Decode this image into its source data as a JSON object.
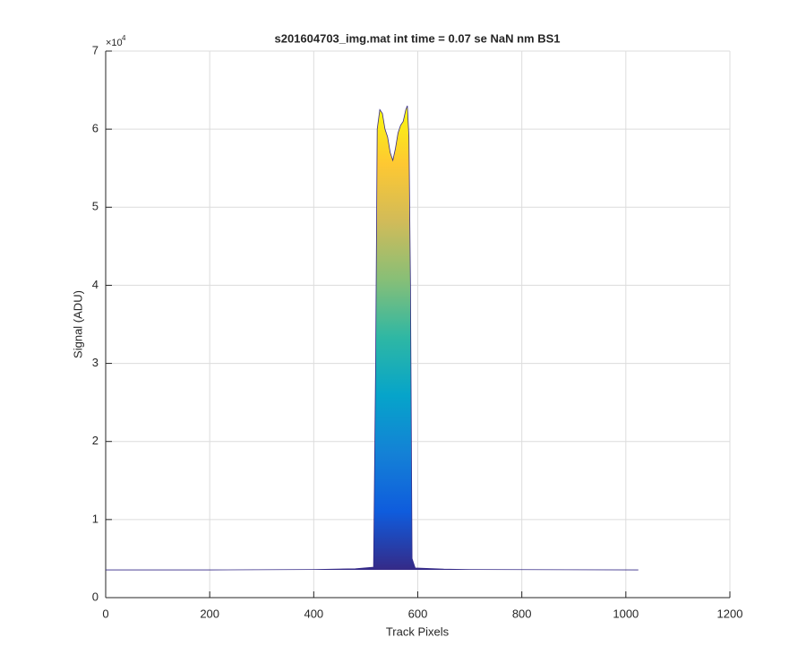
{
  "chart_data": {
    "type": "area",
    "title": "s201604703_img.mat int time = 0.07 se  NaN nm BS1",
    "xlabel": "Track Pixels",
    "ylabel": "Signal (ADU)",
    "y_multiplier": {
      "base": "×10",
      "exponent": "4"
    },
    "x": [
      0,
      200,
      400,
      480,
      515,
      519,
      522,
      527,
      532,
      537,
      542,
      547,
      552,
      557,
      562,
      567,
      572,
      577,
      580,
      583,
      586,
      589,
      595,
      650,
      700,
      1024
    ],
    "values": [
      3550,
      3550,
      3600,
      3700,
      3900,
      30000,
      60000,
      62500,
      62000,
      60000,
      59000,
      57000,
      56000,
      57500,
      59500,
      60500,
      61000,
      62500,
      63000,
      59000,
      40000,
      5000,
      3800,
      3650,
      3600,
      3550
    ],
    "colormap": [
      "#352a87",
      "#0f5cdd",
      "#1481d6",
      "#06a4ca",
      "#2eb7a4",
      "#87bf77",
      "#d1bb59",
      "#fec832",
      "#f9fb0e"
    ],
    "line_color": "#352a87",
    "xlim": [
      0,
      1200
    ],
    "xticks": [
      0,
      200,
      400,
      600,
      800,
      1000,
      1200
    ],
    "ylim": [
      0,
      70000
    ],
    "yticks": [
      {
        "value": 0,
        "label": "0"
      },
      {
        "value": 10000,
        "label": "1"
      },
      {
        "value": 20000,
        "label": "2"
      },
      {
        "value": 30000,
        "label": "3"
      },
      {
        "value": 40000,
        "label": "4"
      },
      {
        "value": 50000,
        "label": "5"
      },
      {
        "value": 60000,
        "label": "6"
      },
      {
        "value": 70000,
        "label": "7"
      }
    ],
    "grid": true
  }
}
